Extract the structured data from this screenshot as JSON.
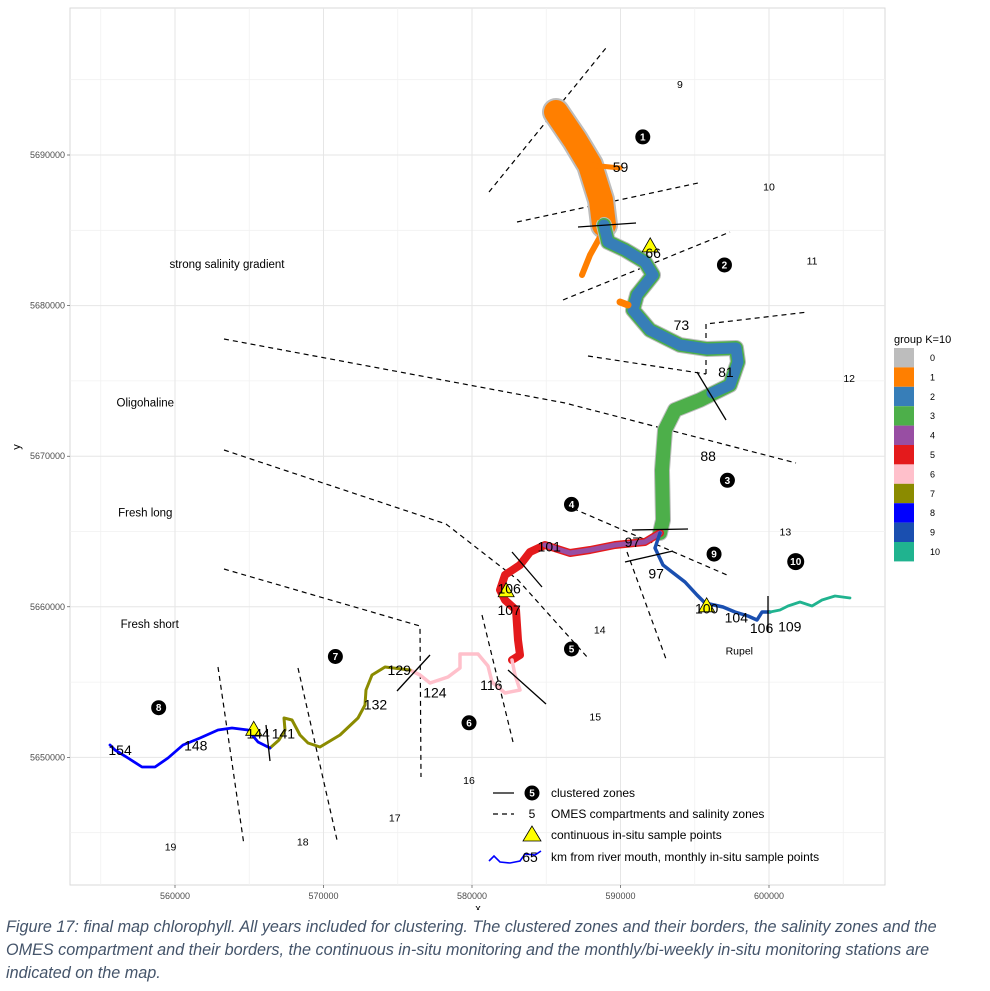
{
  "figure": {
    "caption": "Figure 17: final map chlorophyll. All years included for clustering. The clustered zones and their borders, the salinity zones and the OMES compartment and their borders, the continuous in-situ monitoring and the monthly/bi-weekly in-situ monitoring stations are indicated on the map."
  },
  "chart_data": {
    "type": "map",
    "title": "",
    "xlabel": "x",
    "ylabel": "y",
    "xlim": [
      553000,
      608000
    ],
    "ylim": [
      5641500,
      5699700
    ],
    "x_ticks": [
      560000,
      570000,
      580000,
      590000,
      600000
    ],
    "x_tick_labels": [
      "560000",
      "570000",
      "580000",
      "590000",
      "600000"
    ],
    "y_ticks": [
      5650000,
      5660000,
      5670000,
      5680000,
      5690000
    ],
    "y_tick_labels": [
      "5650000",
      "5660000",
      "5670000",
      "5680000",
      "5690000"
    ],
    "grid": true,
    "legend": {
      "title": "group K=10",
      "placement": "right",
      "groups": [
        {
          "label": "0",
          "color": "#bdbdbd"
        },
        {
          "label": "1",
          "color": "#ff7f00"
        },
        {
          "label": "2",
          "color": "#377eb8"
        },
        {
          "label": "3",
          "color": "#4daf4a"
        },
        {
          "label": "4",
          "color": "#984ea3"
        },
        {
          "label": "5",
          "color": "#e41a1c"
        },
        {
          "label": "6",
          "color": "#ffc0cb"
        },
        {
          "label": "7",
          "color": "#8b8b00"
        },
        {
          "label": "8",
          "color": "#0000ff"
        },
        {
          "label": "9",
          "color": "#1a4fb0"
        },
        {
          "label": "10",
          "color": "#20b38f"
        }
      ]
    },
    "key": {
      "placement": "bottom-right",
      "items": [
        {
          "symbol": "solid-line-and-black-circle",
          "sample": "5",
          "label": "clustered zones"
        },
        {
          "symbol": "dashed-line-and-number",
          "sample": "5",
          "label": "OMES compartments and salinity zones"
        },
        {
          "symbol": "yellow-triangle",
          "sample": "",
          "label": "continuous in-situ sample points"
        },
        {
          "symbol": "river-line-and-km",
          "sample": "65",
          "label": "km from river mouth, monthly in-situ sample points"
        }
      ]
    },
    "salinity_zones": [
      {
        "label": "strong salinity gradient",
        "x": 563500,
        "y": 5682500
      },
      {
        "label": "Oligohaline",
        "x": 558000,
        "y": 5673300
      },
      {
        "label": "Fresh long",
        "x": 558000,
        "y": 5666000
      },
      {
        "label": "Fresh short",
        "x": 558300,
        "y": 5658600
      }
    ],
    "clustered_zones": [
      {
        "id": "1",
        "x": 591500,
        "y": 5691200
      },
      {
        "id": "2",
        "x": 597000,
        "y": 5682700
      },
      {
        "id": "3",
        "x": 597200,
        "y": 5668400
      },
      {
        "id": "4",
        "x": 586700,
        "y": 5666800
      },
      {
        "id": "5",
        "x": 586700,
        "y": 5657200
      },
      {
        "id": "6",
        "x": 579800,
        "y": 5652300
      },
      {
        "id": "7",
        "x": 570800,
        "y": 5656700
      },
      {
        "id": "8",
        "x": 558900,
        "y": 5653300
      },
      {
        "id": "9",
        "x": 596300,
        "y": 5663500
      },
      {
        "id": "10",
        "x": 601800,
        "y": 5663000
      }
    ],
    "omes_compartments": [
      {
        "id": "9",
        "x": 594000,
        "y": 5694700
      },
      {
        "id": "10",
        "x": 600000,
        "y": 5687900
      },
      {
        "id": "11",
        "x": 602900,
        "y": 5683000
      },
      {
        "id": "12",
        "x": 605400,
        "y": 5675200
      },
      {
        "id": "13",
        "x": 601100,
        "y": 5665000
      },
      {
        "id": "14",
        "x": 588600,
        "y": 5658500
      },
      {
        "id": "15",
        "x": 588300,
        "y": 5652700
      },
      {
        "id": "16",
        "x": 579800,
        "y": 5648500
      },
      {
        "id": "17",
        "x": 574800,
        "y": 5646000
      },
      {
        "id": "18",
        "x": 568600,
        "y": 5644400
      },
      {
        "id": "19",
        "x": 559700,
        "y": 5644100
      }
    ],
    "river_label": {
      "label": "Rupel",
      "x": 598000,
      "y": 5657100
    },
    "km_markers": [
      {
        "km": "59",
        "x": 590000,
        "y": 5689200
      },
      {
        "km": "66",
        "x": 592200,
        "y": 5683500
      },
      {
        "km": "73",
        "x": 594100,
        "y": 5678700
      },
      {
        "km": "81",
        "x": 597100,
        "y": 5675600
      },
      {
        "km": "88",
        "x": 595900,
        "y": 5670000
      },
      {
        "km": "97",
        "x": 590800,
        "y": 5664300
      },
      {
        "km": "101",
        "x": 585200,
        "y": 5664000
      },
      {
        "km": "97",
        "x": 592400,
        "y": 5662200
      },
      {
        "km": "106",
        "x": 582500,
        "y": 5661200
      },
      {
        "km": "107",
        "x": 582500,
        "y": 5659800
      },
      {
        "km": "100",
        "x": 595800,
        "y": 5659900
      },
      {
        "km": "104",
        "x": 597800,
        "y": 5659300
      },
      {
        "km": "106",
        "x": 599500,
        "y": 5658600
      },
      {
        "km": "109",
        "x": 601400,
        "y": 5658700
      },
      {
        "km": "129",
        "x": 575100,
        "y": 5655800
      },
      {
        "km": "124",
        "x": 577500,
        "y": 5654300
      },
      {
        "km": "116",
        "x": 581300,
        "y": 5654800
      },
      {
        "km": "132",
        "x": 573500,
        "y": 5653500
      },
      {
        "km": "144",
        "x": 565600,
        "y": 5651600
      },
      {
        "km": "141",
        "x": 567300,
        "y": 5651600
      },
      {
        "km": "148",
        "x": 561400,
        "y": 5650800
      },
      {
        "km": "154",
        "x": 556300,
        "y": 5650500
      }
    ],
    "continuous_sample_points": [
      {
        "x": 592000,
        "y": 5683900
      },
      {
        "x": 582300,
        "y": 5661000
      },
      {
        "x": 595800,
        "y": 5660000
      },
      {
        "x": 565300,
        "y": 5651800
      }
    ]
  }
}
